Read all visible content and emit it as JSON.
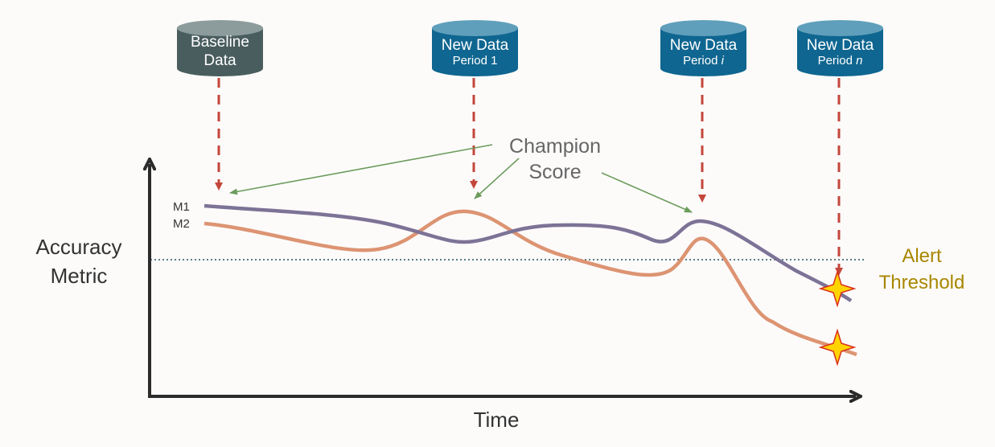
{
  "sources": [
    {
      "line1": "Baseline",
      "line2": "Data",
      "italic": "",
      "color": "#4a5d5e",
      "top": "#8c9c9c"
    },
    {
      "line1": "New Data",
      "line2": "Period 1",
      "italic": "",
      "color": "#0f6690",
      "top": "#5f9fbb"
    },
    {
      "line1": "New Data",
      "line2": "Period ",
      "italic": "i",
      "color": "#0f6690",
      "top": "#5f9fbb"
    },
    {
      "line1": "New Data",
      "line2": "Period ",
      "italic": "n",
      "color": "#0f6690",
      "top": "#5f9fbb"
    }
  ],
  "annotation": {
    "line1": "Champion",
    "line2": "Score"
  },
  "axes": {
    "y_line1": "Accuracy",
    "y_line2": "Metric",
    "x": "Time"
  },
  "series": [
    {
      "name": "M1",
      "color": "#7d7396"
    },
    {
      "name": "M2",
      "color": "#dd9472"
    }
  ],
  "threshold": {
    "line1": "Alert",
    "line2": "Threshold",
    "color": "#a88700"
  },
  "colors": {
    "arrow_dashed": "#c4463a",
    "arrow_green": "#6c9c5c",
    "threshold_line": "#5d7b82"
  }
}
